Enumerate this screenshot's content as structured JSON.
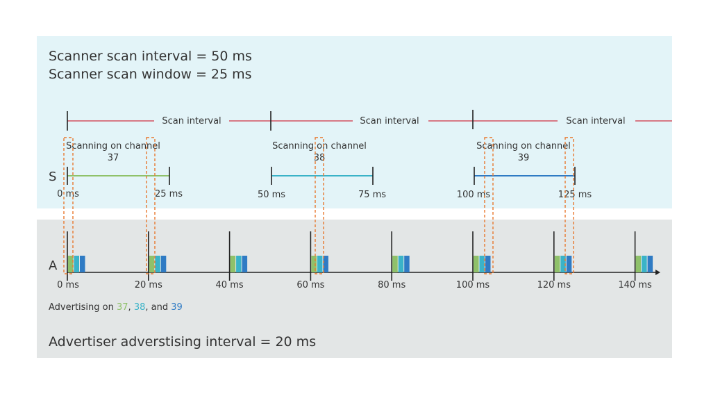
{
  "scanner": {
    "interval_label": "Scanner scan interval = 50 ms",
    "window_label": "Scanner scan window = 25 ms",
    "scan_interval_text": "Scan interval",
    "row_label": "S",
    "windows": [
      {
        "title": "Scanning on channel",
        "channel": "37",
        "start_label": "0 ms",
        "end_label": "25 ms",
        "color": "#8fc16a"
      },
      {
        "title": "Scanning on channel",
        "channel": "38",
        "start_label": "50 ms",
        "end_label": "75 ms",
        "color": "#3ab3c8"
      },
      {
        "title": "Scanning on channel",
        "channel": "39",
        "start_label": "100 ms",
        "end_label": "125 ms",
        "color": "#2f7bc4"
      }
    ]
  },
  "advertiser": {
    "row_label": "A",
    "ticks": [
      "0 ms",
      "20 ms",
      "40 ms",
      "60 ms",
      "80 ms",
      "100 ms",
      "120 ms",
      "140 ms"
    ],
    "caption_prefix": "Advertising on ",
    "ch37": "37",
    "sep1": ", ",
    "ch38": "38",
    "sep2": ", and ",
    "ch39": "39",
    "interval_label": "Advertiser adverstising interval = 20 ms"
  },
  "colors": {
    "scanner_bg": "#e3f4f8",
    "advertiser_bg": "#e3e6e6",
    "scan_interval_line": "#d3505f",
    "overlap_box": "#e8782e",
    "ch37": "#8fc16a",
    "ch38": "#3ab3c8",
    "ch39": "#2f7bc4"
  }
}
